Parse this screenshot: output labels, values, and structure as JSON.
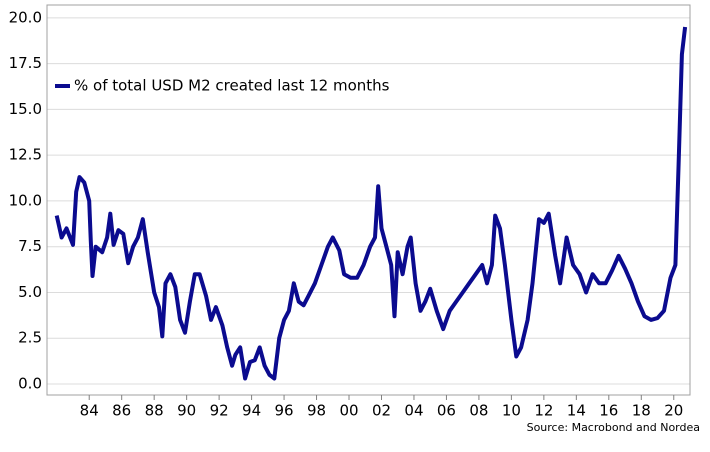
{
  "chart_data": {
    "type": "line",
    "source": "Source: Macrobond and Nordea",
    "x": [
      1982.0,
      1982.3,
      1982.6,
      1983.0,
      1983.2,
      1983.4,
      1983.7,
      1984.0,
      1984.1,
      1984.2,
      1984.4,
      1984.8,
      1985.1,
      1985.3,
      1985.5,
      1985.8,
      1986.1,
      1986.4,
      1986.7,
      1987.0,
      1987.3,
      1987.6,
      1988.0,
      1988.3,
      1988.5,
      1988.7,
      1989.0,
      1989.3,
      1989.6,
      1989.9,
      1990.2,
      1990.5,
      1990.8,
      1991.2,
      1991.5,
      1991.8,
      1992.2,
      1992.5,
      1992.8,
      1993.0,
      1993.3,
      1993.6,
      1993.9,
      1994.2,
      1994.5,
      1994.8,
      1995.1,
      1995.4,
      1995.7,
      1996.0,
      1996.3,
      1996.6,
      1996.9,
      1997.2,
      1997.5,
      1997.9,
      1998.3,
      1998.7,
      1999.0,
      1999.4,
      1999.7,
      2000.1,
      2000.5,
      2000.9,
      2001.3,
      2001.6,
      2001.8,
      2002.0,
      2002.3,
      2002.6,
      2002.8,
      2003.0,
      2003.3,
      2003.6,
      2003.8,
      2004.1,
      2004.4,
      2004.7,
      2005.0,
      2005.4,
      2005.8,
      2006.2,
      2006.6,
      2007.0,
      2007.4,
      2007.8,
      2008.2,
      2008.5,
      2008.8,
      2009.0,
      2009.3,
      2009.6,
      2010.0,
      2010.3,
      2010.6,
      2011.0,
      2011.3,
      2011.7,
      2012.0,
      2012.3,
      2012.7,
      2013.0,
      2013.4,
      2013.8,
      2014.2,
      2014.6,
      2015.0,
      2015.4,
      2015.8,
      2016.2,
      2016.6,
      2017.0,
      2017.4,
      2017.8,
      2018.2,
      2018.6,
      2019.0,
      2019.4,
      2019.8,
      2020.1,
      2020.3,
      2020.5,
      2020.7
    ],
    "series": [
      {
        "name": "% of total USD M2 created last 12 months",
        "color": "#0b0b8f",
        "values": [
          9.2,
          8.0,
          8.5,
          7.6,
          10.5,
          11.3,
          11.0,
          10.0,
          7.8,
          5.9,
          7.5,
          7.2,
          8.0,
          9.3,
          7.6,
          8.4,
          8.2,
          6.6,
          7.5,
          8.0,
          9.0,
          7.2,
          5.0,
          4.2,
          2.6,
          5.5,
          6.0,
          5.3,
          3.5,
          2.8,
          4.5,
          6.0,
          6.0,
          4.8,
          3.5,
          4.2,
          3.2,
          2.0,
          1.0,
          1.6,
          2.0,
          0.3,
          1.2,
          1.3,
          2.0,
          1.0,
          0.5,
          0.3,
          2.5,
          3.5,
          4.0,
          5.5,
          4.5,
          4.3,
          4.8,
          5.5,
          6.5,
          7.5,
          8.0,
          7.3,
          6.0,
          5.8,
          5.8,
          6.5,
          7.5,
          8.0,
          10.8,
          8.5,
          7.5,
          6.5,
          3.7,
          7.2,
          6.0,
          7.5,
          8.0,
          5.5,
          4.0,
          4.5,
          5.2,
          4.0,
          3.0,
          4.0,
          4.5,
          5.0,
          5.5,
          6.0,
          6.5,
          5.5,
          6.5,
          9.2,
          8.5,
          6.5,
          3.5,
          1.5,
          2.0,
          3.5,
          5.5,
          9.0,
          8.8,
          9.3,
          7.0,
          5.5,
          8.0,
          6.5,
          6.0,
          5.0,
          6.0,
          5.5,
          5.5,
          6.2,
          7.0,
          6.3,
          5.5,
          4.5,
          3.7,
          3.5,
          3.6,
          4.0,
          5.8,
          6.5,
          12.0,
          18.0,
          19.5
        ]
      }
    ],
    "xlim": [
      1981.4,
      2021.0
    ],
    "xticks": [
      {
        "value": 1984,
        "label": "84"
      },
      {
        "value": 1986,
        "label": "86"
      },
      {
        "value": 1988,
        "label": "88"
      },
      {
        "value": 1990,
        "label": "90"
      },
      {
        "value": 1992,
        "label": "92"
      },
      {
        "value": 1994,
        "label": "94"
      },
      {
        "value": 1996,
        "label": "96"
      },
      {
        "value": 1998,
        "label": "98"
      },
      {
        "value": 2000,
        "label": "00"
      },
      {
        "value": 2002,
        "label": "02"
      },
      {
        "value": 2004,
        "label": "04"
      },
      {
        "value": 2006,
        "label": "06"
      },
      {
        "value": 2008,
        "label": "08"
      },
      {
        "value": 2010,
        "label": "10"
      },
      {
        "value": 2012,
        "label": "12"
      },
      {
        "value": 2014,
        "label": "14"
      },
      {
        "value": 2016,
        "label": "16"
      },
      {
        "value": 2018,
        "label": "18"
      },
      {
        "value": 2020,
        "label": "20"
      }
    ],
    "ylim": [
      -0.6,
      20.7
    ],
    "yticks": [
      {
        "value": 0,
        "label": "0.0"
      },
      {
        "value": 2.5,
        "label": "2.5"
      },
      {
        "value": 5,
        "label": "5.0"
      },
      {
        "value": 7.5,
        "label": "7.5"
      },
      {
        "value": 10,
        "label": "10.0"
      },
      {
        "value": 12.5,
        "label": "12.5"
      },
      {
        "value": 15,
        "label": "15.0"
      },
      {
        "value": 17.5,
        "label": "17.5"
      },
      {
        "value": 20,
        "label": "20.0"
      }
    ],
    "grid": true,
    "legend": "top-left"
  }
}
